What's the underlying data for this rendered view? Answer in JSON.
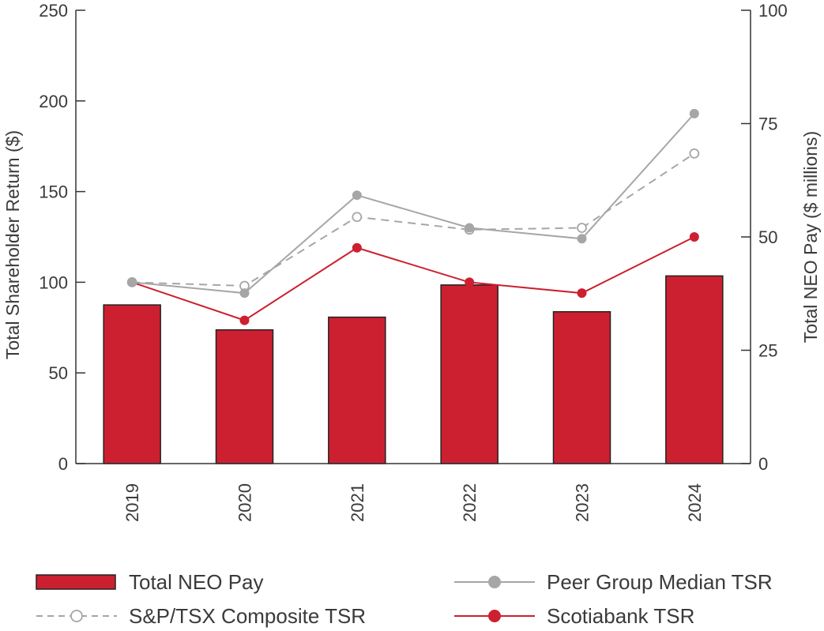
{
  "chart_data": {
    "type": "bar",
    "categories": [
      "2019",
      "2020",
      "2021",
      "2022",
      "2023",
      "2024"
    ],
    "left_axis": {
      "label": "Total Shareholder Return ($)",
      "ylim": [
        0,
        250
      ],
      "ticks": [
        "0",
        "50",
        "100",
        "150",
        "200",
        "250"
      ]
    },
    "right_axis": {
      "label": "Total NEO Pay ($ millions)",
      "ylim": [
        0,
        100
      ],
      "ticks": [
        "0",
        "25",
        "50",
        "75",
        "100"
      ]
    },
    "series": [
      {
        "name": "Total NEO Pay",
        "kind": "bar",
        "axis": "right",
        "color": "#cc2030",
        "values": [
          35,
          29.5,
          32.3,
          39.4,
          33.5,
          41.4
        ]
      },
      {
        "name": "Peer Group Median TSR",
        "kind": "line",
        "axis": "left",
        "color": "#a6a6a6",
        "marker": "filled-circle",
        "values": [
          100,
          94,
          148,
          130,
          124,
          193
        ]
      },
      {
        "name": "S&P/TSX Composite TSR",
        "kind": "line",
        "axis": "left",
        "color": "#a6a6a6",
        "dashed": true,
        "marker": "hollow-circle",
        "values": [
          100,
          98,
          136,
          129,
          130,
          171
        ]
      },
      {
        "name": "Scotiabank TSR",
        "kind": "line",
        "axis": "left",
        "color": "#cc2030",
        "marker": "filled-circle",
        "values": [
          100,
          79,
          119,
          100,
          94,
          125
        ]
      }
    ],
    "legend": {
      "placement": "bottom",
      "order": [
        "Total NEO Pay",
        "Peer Group Median TSR",
        "S&P/TSX Composite TSR",
        "Scotiabank TSR"
      ]
    },
    "grid": false
  }
}
